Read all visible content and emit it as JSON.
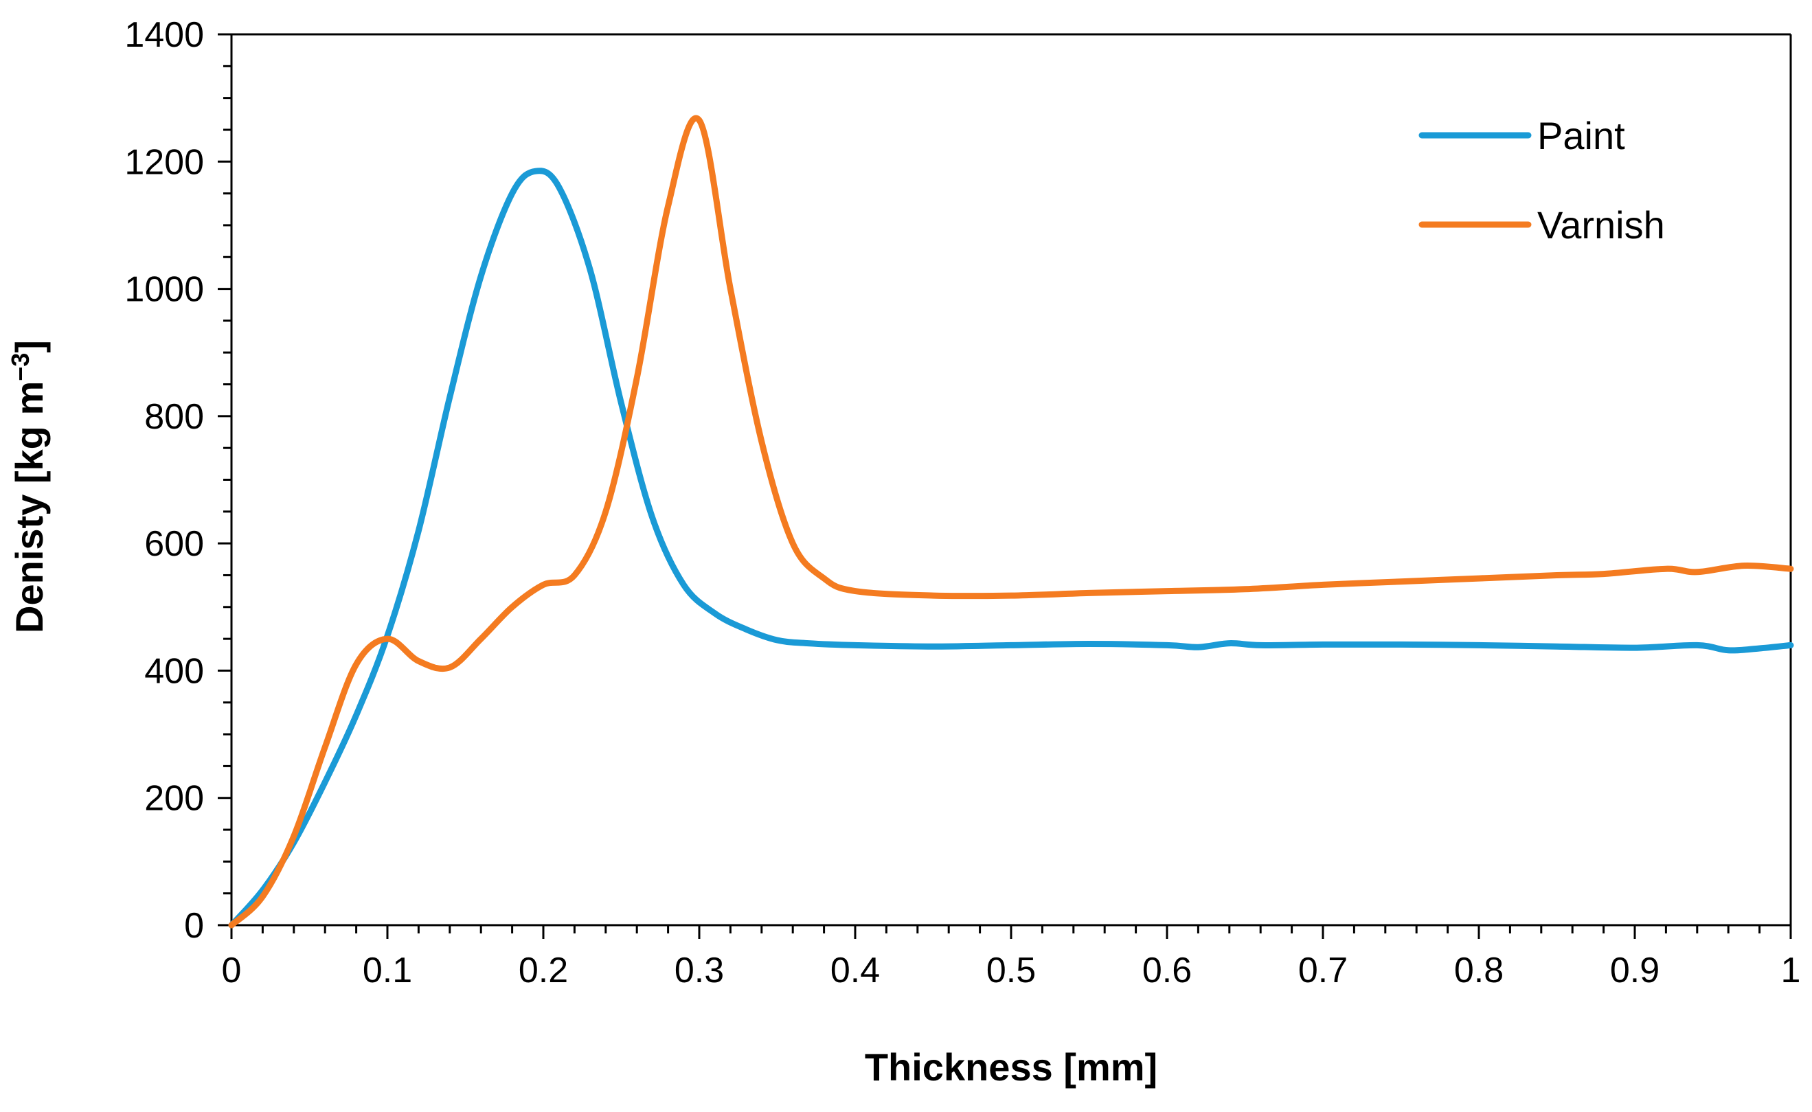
{
  "chart_data": {
    "type": "line",
    "title": "",
    "xlabel": "Thickness [mm]",
    "ylabel": "Denisty [kg m",
    "ylabel_sup": "−3",
    "ylabel_close": "]",
    "xlim": [
      0,
      1
    ],
    "ylim": [
      0,
      1400
    ],
    "xticks": [
      0,
      0.1,
      0.2,
      0.3,
      0.4,
      0.5,
      0.6,
      0.7,
      0.8,
      0.9,
      1
    ],
    "xtick_labels": [
      "0",
      "0.1",
      "0.2",
      "0.3",
      "0.4",
      "0.5",
      "0.6",
      "0.7",
      "0.8",
      "0.9",
      "1"
    ],
    "yticks": [
      0,
      200,
      400,
      600,
      800,
      1000,
      1200,
      1400
    ],
    "ytick_labels": [
      "0",
      "200",
      "400",
      "600",
      "800",
      "1000",
      "1200",
      "1400"
    ],
    "grid": false,
    "legend_position": "top-right",
    "series": [
      {
        "name": "Paint",
        "color": "#1a9ad6",
        "x": [
          0,
          0.02,
          0.04,
          0.06,
          0.08,
          0.1,
          0.12,
          0.14,
          0.16,
          0.18,
          0.195,
          0.21,
          0.23,
          0.25,
          0.27,
          0.29,
          0.31,
          0.33,
          0.35,
          0.37,
          0.4,
          0.45,
          0.5,
          0.55,
          0.6,
          0.62,
          0.64,
          0.66,
          0.7,
          0.75,
          0.8,
          0.85,
          0.9,
          0.94,
          0.96,
          0.98,
          1.0
        ],
        "y": [
          0,
          55,
          130,
          225,
          330,
          455,
          620,
          830,
          1020,
          1150,
          1185,
          1160,
          1030,
          820,
          640,
          535,
          490,
          465,
          448,
          443,
          440,
          438,
          440,
          442,
          440,
          437,
          443,
          440,
          441,
          441,
          440,
          438,
          436,
          440,
          432,
          435,
          440
        ]
      },
      {
        "name": "Varnish",
        "color": "#f47b20",
        "x": [
          0,
          0.02,
          0.04,
          0.06,
          0.08,
          0.1,
          0.12,
          0.14,
          0.16,
          0.18,
          0.2,
          0.22,
          0.24,
          0.26,
          0.28,
          0.3,
          0.32,
          0.34,
          0.36,
          0.38,
          0.4,
          0.45,
          0.5,
          0.55,
          0.6,
          0.65,
          0.7,
          0.75,
          0.8,
          0.85,
          0.88,
          0.92,
          0.94,
          0.97,
          1.0
        ],
        "y": [
          0,
          45,
          140,
          280,
          410,
          450,
          415,
          405,
          450,
          500,
          535,
          550,
          650,
          860,
          1130,
          1265,
          1000,
          760,
          600,
          545,
          525,
          518,
          518,
          522,
          525,
          528,
          535,
          540,
          545,
          550,
          552,
          560,
          555,
          565,
          560
        ]
      }
    ]
  }
}
